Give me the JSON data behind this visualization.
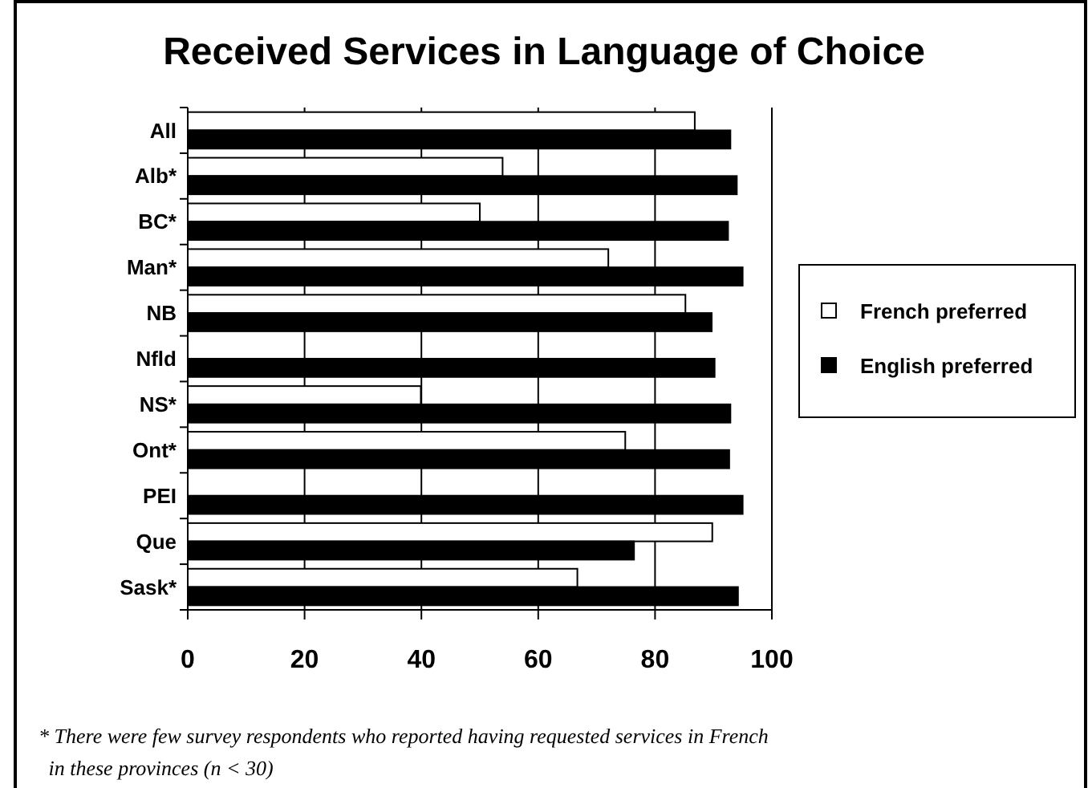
{
  "chart_data": {
    "type": "bar",
    "orientation": "horizontal",
    "title": "Received Services in Language of Choice",
    "categories": [
      "All",
      "Alb*",
      "BC*",
      "Man*",
      "NB",
      "Nfld",
      "NS*",
      "Ont*",
      "PEI",
      "Que",
      "Sask*"
    ],
    "series": [
      {
        "name": "French preferred",
        "color": "#ffffff",
        "values": [
          86.8,
          53.9,
          50,
          72,
          85.2,
          null,
          39.9,
          74.9,
          null,
          89.8,
          66.7
        ]
      },
      {
        "name": "English preferred",
        "color": "#000000",
        "values": [
          92.9,
          94,
          92.5,
          95,
          89.7,
          90.2,
          92.9,
          92.7,
          95,
          76.4,
          94.2
        ]
      }
    ],
    "xlim": [
      0,
      100
    ],
    "xticks": [
      0,
      20,
      40,
      60,
      80,
      100
    ],
    "grid": "x",
    "legend": "right",
    "annotations": [
      "* There were few survey respondents who reported having requested services in French in these provinces (n < 30)"
    ]
  }
}
